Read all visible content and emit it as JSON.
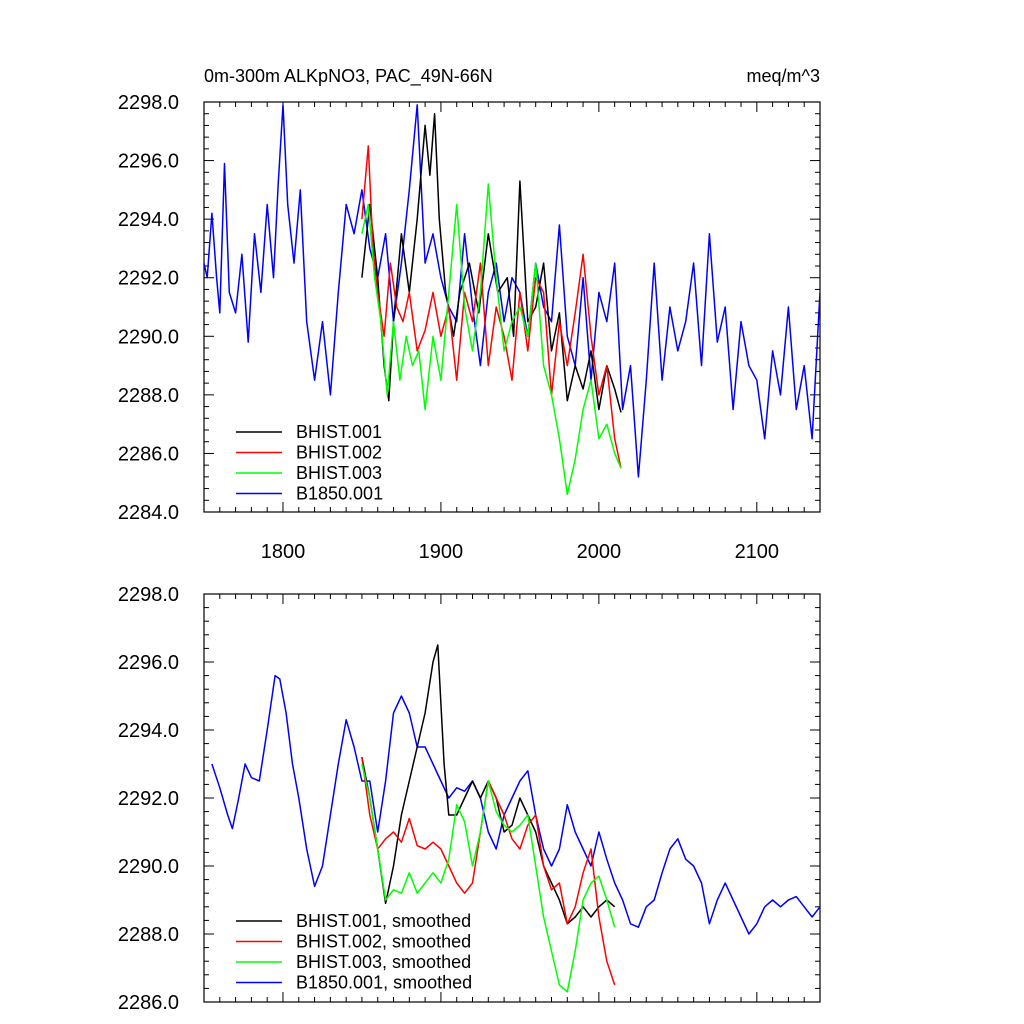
{
  "chart_data": [
    {
      "type": "line",
      "title": "0m-300m ALKpNO3, PAC_49N-66N",
      "units": "meq/m^3",
      "xlim": [
        1750,
        2140
      ],
      "ylim": [
        2284.0,
        2298.0
      ],
      "xticks": [
        1800,
        1900,
        2000,
        2100
      ],
      "xtick_labels": [
        "1800",
        "1900",
        "2000",
        "2100"
      ],
      "yticks": [
        2284,
        2286,
        2288,
        2290,
        2292,
        2294,
        2296,
        2298
      ],
      "ytick_labels": [
        "2284.0",
        "2286.0",
        "2288.0",
        "2290.0",
        "2292.0",
        "2294.0",
        "2296.0",
        "2298.0"
      ],
      "legend_position": "bottom-left",
      "series": [
        {
          "name": "BHIST.001",
          "color": "#000000",
          "x": [
            1850,
            1855,
            1860,
            1864,
            1867,
            1870,
            1875,
            1880,
            1885,
            1890,
            1893,
            1896,
            1899,
            1903,
            1908,
            1912,
            1918,
            1924,
            1930,
            1936,
            1942,
            1946,
            1950,
            1955,
            1960,
            1965,
            1970,
            1975,
            1980,
            1985,
            1990,
            1995,
            2000,
            2005,
            2010,
            2014
          ],
          "y": [
            2292.0,
            2294.5,
            2292.0,
            2289.0,
            2287.8,
            2290.5,
            2293.5,
            2291.5,
            2294.0,
            2297.2,
            2295.5,
            2297.6,
            2294.0,
            2291.5,
            2290.0,
            2291.5,
            2292.5,
            2290.8,
            2293.5,
            2291.5,
            2292.0,
            2290.0,
            2295.3,
            2290.5,
            2291.0,
            2292.5,
            2289.5,
            2290.8,
            2287.8,
            2289.0,
            2288.2,
            2289.5,
            2287.5,
            2289.0,
            2288.2,
            2287.4
          ]
        },
        {
          "name": "BHIST.002",
          "color": "#ff0000",
          "x": [
            1850,
            1854,
            1857,
            1860,
            1864,
            1868,
            1872,
            1876,
            1880,
            1885,
            1890,
            1895,
            1900,
            1905,
            1910,
            1915,
            1920,
            1925,
            1930,
            1935,
            1940,
            1945,
            1950,
            1955,
            1960,
            1965,
            1970,
            1975,
            1980,
            1985,
            1990,
            1995,
            2000,
            2005,
            2010,
            2014
          ],
          "y": [
            2294.0,
            2296.5,
            2293.0,
            2291.5,
            2290.0,
            2292.5,
            2291.0,
            2290.5,
            2291.5,
            2289.5,
            2290.2,
            2291.5,
            2290.0,
            2291.0,
            2288.5,
            2291.5,
            2290.5,
            2292.5,
            2289.0,
            2291.0,
            2290.0,
            2288.5,
            2291.5,
            2289.5,
            2292.0,
            2291.5,
            2288.0,
            2290.5,
            2289.0,
            2290.8,
            2292.8,
            2290.0,
            2288.0,
            2289.0,
            2286.5,
            2285.5
          ]
        },
        {
          "name": "BHIST.003",
          "color": "#00ff00",
          "x": [
            1850,
            1854,
            1858,
            1862,
            1866,
            1870,
            1874,
            1878,
            1882,
            1886,
            1890,
            1895,
            1900,
            1905,
            1910,
            1915,
            1920,
            1925,
            1930,
            1935,
            1940,
            1945,
            1950,
            1955,
            1960,
            1965,
            1970,
            1975,
            1980,
            1985,
            1990,
            1995,
            2000,
            2005,
            2010,
            2014
          ],
          "y": [
            2293.5,
            2294.5,
            2292.0,
            2290.5,
            2288.0,
            2290.5,
            2288.5,
            2290.0,
            2289.0,
            2289.5,
            2287.5,
            2290.0,
            2288.5,
            2291.5,
            2294.5,
            2291.0,
            2289.5,
            2291.5,
            2295.2,
            2292.0,
            2289.5,
            2290.5,
            2291.0,
            2290.0,
            2292.5,
            2289.0,
            2288.0,
            2286.5,
            2284.6,
            2285.8,
            2287.5,
            2288.5,
            2286.5,
            2287.0,
            2286.0,
            2285.5
          ]
        },
        {
          "name": "B1850.001",
          "color": "#0000ff",
          "x": [
            1750,
            1752,
            1755,
            1758,
            1760,
            1763,
            1766,
            1770,
            1774,
            1778,
            1782,
            1786,
            1790,
            1794,
            1797,
            1800,
            1803,
            1807,
            1811,
            1815,
            1820,
            1825,
            1830,
            1835,
            1840,
            1845,
            1850,
            1855,
            1860,
            1865,
            1870,
            1875,
            1880,
            1885,
            1890,
            1895,
            1900,
            1905,
            1910,
            1915,
            1920,
            1925,
            1930,
            1935,
            1940,
            1945,
            1950,
            1955,
            1960,
            1965,
            1970,
            1975,
            1980,
            1985,
            1990,
            1995,
            2000,
            2005,
            2010,
            2015,
            2020,
            2025,
            2030,
            2035,
            2040,
            2045,
            2050,
            2055,
            2060,
            2065,
            2070,
            2075,
            2080,
            2085,
            2090,
            2095,
            2100,
            2105,
            2110,
            2115,
            2120,
            2125,
            2130,
            2135,
            2140
          ],
          "y": [
            2292.5,
            2292.0,
            2294.2,
            2292.0,
            2290.8,
            2295.9,
            2291.5,
            2290.8,
            2292.8,
            2289.8,
            2293.5,
            2291.5,
            2294.5,
            2292.0,
            2295.2,
            2297.9,
            2294.5,
            2292.5,
            2295.0,
            2290.5,
            2288.5,
            2290.5,
            2288.0,
            2291.5,
            2294.5,
            2293.5,
            2295.0,
            2293.0,
            2292.0,
            2293.5,
            2290.5,
            2292.5,
            2295.0,
            2297.9,
            2292.5,
            2293.5,
            2292.0,
            2291.0,
            2290.5,
            2293.5,
            2291.0,
            2289.0,
            2291.5,
            2292.5,
            2290.5,
            2292.0,
            2291.5,
            2290.0,
            2292.5,
            2291.0,
            2290.5,
            2293.8,
            2290.0,
            2289.0,
            2292.0,
            2288.5,
            2291.5,
            2290.5,
            2292.5,
            2287.5,
            2289.0,
            2285.2,
            2288.5,
            2292.5,
            2288.5,
            2291.0,
            2289.5,
            2290.5,
            2292.5,
            2289.0,
            2293.5,
            2289.8,
            2291.0,
            2287.5,
            2290.5,
            2289.0,
            2288.5,
            2286.5,
            2289.5,
            2288.0,
            2291.0,
            2287.5,
            2289.0,
            2286.5,
            2291.5
          ]
        }
      ]
    },
    {
      "type": "line",
      "title": "",
      "xlim": [
        1750,
        2140
      ],
      "ylim": [
        2286.0,
        2298.0
      ],
      "xticks": [
        1800,
        1900,
        2000,
        2100
      ],
      "yticks": [
        2286,
        2288,
        2290,
        2292,
        2294,
        2296,
        2298
      ],
      "ytick_labels": [
        "2286.0",
        "2288.0",
        "2290.0",
        "2292.0",
        "2294.0",
        "2296.0",
        "2298.0"
      ],
      "legend_position": "bottom-left",
      "series": [
        {
          "name": "BHIST.001, smoothed",
          "color": "#000000",
          "x": [
            1850,
            1855,
            1860,
            1865,
            1870,
            1875,
            1880,
            1885,
            1890,
            1895,
            1898,
            1902,
            1905,
            1910,
            1915,
            1920,
            1925,
            1930,
            1935,
            1940,
            1945,
            1950,
            1955,
            1960,
            1965,
            1970,
            1975,
            1980,
            1985,
            1990,
            1995,
            2000,
            2005,
            2010
          ],
          "y": [
            2293.2,
            2292.0,
            2290.5,
            2288.9,
            2290.0,
            2291.5,
            2292.5,
            2293.5,
            2294.5,
            2296.0,
            2296.5,
            2293.0,
            2291.5,
            2291.5,
            2292.0,
            2292.5,
            2292.0,
            2292.5,
            2292.0,
            2291.0,
            2291.2,
            2292.0,
            2291.5,
            2291.0,
            2290.0,
            2289.5,
            2289.0,
            2288.3,
            2288.5,
            2288.8,
            2288.5,
            2288.8,
            2289.0,
            2288.8
          ]
        },
        {
          "name": "BHIST.002, smoothed",
          "color": "#ff0000",
          "x": [
            1850,
            1855,
            1860,
            1865,
            1870,
            1875,
            1880,
            1885,
            1890,
            1895,
            1900,
            1905,
            1910,
            1915,
            1920,
            1925,
            1930,
            1935,
            1940,
            1945,
            1950,
            1955,
            1960,
            1965,
            1970,
            1975,
            1980,
            1985,
            1990,
            1995,
            2000,
            2005,
            2010
          ],
          "y": [
            2293.2,
            2291.5,
            2290.5,
            2290.8,
            2291.0,
            2290.7,
            2291.4,
            2290.6,
            2290.5,
            2290.7,
            2290.5,
            2290.0,
            2289.5,
            2289.2,
            2289.5,
            2291.0,
            2292.5,
            2292.0,
            2291.5,
            2290.8,
            2290.5,
            2291.2,
            2291.5,
            2290.0,
            2289.3,
            2289.5,
            2288.3,
            2288.8,
            2289.8,
            2290.5,
            2288.5,
            2287.2,
            2286.5
          ]
        },
        {
          "name": "BHIST.003, smoothed",
          "color": "#00ff00",
          "x": [
            1850,
            1855,
            1860,
            1865,
            1870,
            1875,
            1880,
            1885,
            1890,
            1895,
            1900,
            1905,
            1910,
            1915,
            1920,
            1925,
            1930,
            1935,
            1940,
            1945,
            1950,
            1955,
            1960,
            1965,
            1970,
            1975,
            1980,
            1985,
            1990,
            1995,
            2000,
            2005,
            2010
          ],
          "y": [
            2293.0,
            2292.0,
            2290.5,
            2289.0,
            2289.3,
            2289.2,
            2289.8,
            2289.2,
            2289.5,
            2289.8,
            2289.5,
            2290.2,
            2291.8,
            2291.3,
            2290.0,
            2291.0,
            2292.5,
            2291.6,
            2291.2,
            2291.0,
            2291.2,
            2291.5,
            2290.0,
            2288.5,
            2287.5,
            2286.5,
            2286.3,
            2287.5,
            2289.0,
            2289.5,
            2289.7,
            2289.0,
            2288.2
          ]
        },
        {
          "name": "B1850.001, smoothed",
          "color": "#0000ff",
          "x": [
            1755,
            1760,
            1765,
            1768,
            1772,
            1776,
            1780,
            1785,
            1790,
            1795,
            1798,
            1802,
            1806,
            1810,
            1815,
            1820,
            1825,
            1830,
            1835,
            1840,
            1845,
            1850,
            1855,
            1860,
            1865,
            1870,
            1875,
            1880,
            1885,
            1890,
            1895,
            1900,
            1905,
            1910,
            1915,
            1920,
            1925,
            1930,
            1935,
            1940,
            1945,
            1950,
            1955,
            1960,
            1965,
            1970,
            1975,
            1980,
            1985,
            1990,
            1995,
            2000,
            2005,
            2010,
            2015,
            2020,
            2025,
            2030,
            2035,
            2040,
            2045,
            2050,
            2055,
            2060,
            2065,
            2070,
            2075,
            2080,
            2085,
            2090,
            2095,
            2100,
            2105,
            2110,
            2115,
            2120,
            2125,
            2130,
            2135,
            2140
          ],
          "y": [
            2293.0,
            2292.3,
            2291.5,
            2291.1,
            2292.0,
            2293.0,
            2292.6,
            2292.5,
            2294.0,
            2295.6,
            2295.5,
            2294.5,
            2293.0,
            2292.0,
            2290.5,
            2289.4,
            2290.0,
            2291.5,
            2293.0,
            2294.3,
            2293.5,
            2292.5,
            2292.5,
            2291.0,
            2292.5,
            2294.5,
            2295.0,
            2294.5,
            2293.5,
            2293.5,
            2293.0,
            2292.5,
            2292.0,
            2292.3,
            2292.2,
            2292.5,
            2292.0,
            2291.0,
            2290.5,
            2291.5,
            2292.0,
            2292.5,
            2292.8,
            2291.5,
            2290.5,
            2290.0,
            2290.5,
            2291.8,
            2291.0,
            2290.5,
            2290.0,
            2291.0,
            2290.2,
            2289.5,
            2289.0,
            2288.3,
            2288.2,
            2288.8,
            2289.0,
            2289.8,
            2290.5,
            2290.8,
            2290.2,
            2290.0,
            2289.5,
            2288.3,
            2289.0,
            2289.5,
            2289.0,
            2288.5,
            2288.0,
            2288.3,
            2288.8,
            2289.0,
            2288.8,
            2289.0,
            2289.1,
            2288.8,
            2288.5,
            2288.8
          ]
        }
      ]
    }
  ]
}
